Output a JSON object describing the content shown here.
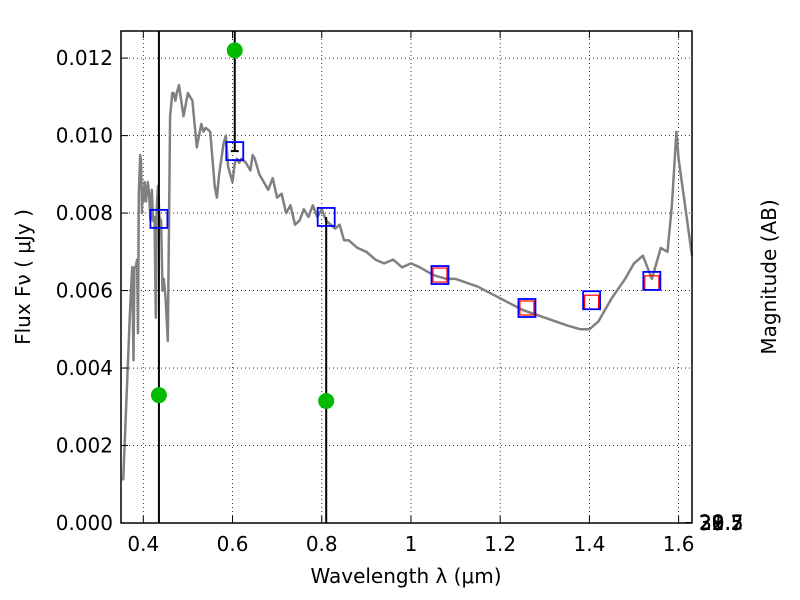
{
  "chart_data": {
    "type": "line",
    "xlabel": "Wavelength  λ (μm)",
    "ylabel": "Flux  Fν  ( μJy )",
    "y2label": "Magnitude (AB)",
    "xlim": [
      0.35,
      1.63
    ],
    "ylim": [
      0.0,
      0.0127
    ],
    "x_ticks": [
      0.4,
      0.6,
      0.8,
      1.0,
      1.2,
      1.4,
      1.6
    ],
    "x_tick_labels": [
      "0.4",
      "0.6",
      "0.8",
      "1",
      "1.2",
      "1.4",
      "1.6"
    ],
    "y_ticks": [
      0.0,
      0.002,
      0.004,
      0.006,
      0.008,
      0.01,
      0.012
    ],
    "y_tick_labels": [
      "0.000",
      "0.002",
      "0.004",
      "0.006",
      "0.008",
      "0.010",
      "0.012"
    ],
    "y2_ticks": [
      28.7,
      29,
      29.2,
      29.5,
      30,
      30.5,
      31,
      32
    ],
    "y2_tick_labels": [
      "28.7",
      "29",
      "29.2",
      "29.5",
      "30",
      "30.5",
      "31",
      "32"
    ],
    "grid": true,
    "colors": {
      "spectrum": "#808080",
      "model_box": "#0000ff",
      "obs_box": "#ff0000",
      "measured_point": "#00bb00",
      "errorbar": "#000000"
    },
    "spectrum": {
      "x": [
        0.355,
        0.37,
        0.375,
        0.378,
        0.38,
        0.383,
        0.386,
        0.388,
        0.39,
        0.393,
        0.395,
        0.397,
        0.398,
        0.4,
        0.403,
        0.406,
        0.41,
        0.413,
        0.416,
        0.419,
        0.422,
        0.425,
        0.428,
        0.43,
        0.433,
        0.436,
        0.44,
        0.443,
        0.446,
        0.45,
        0.455,
        0.46,
        0.465,
        0.468,
        0.472,
        0.475,
        0.48,
        0.49,
        0.5,
        0.51,
        0.52,
        0.53,
        0.535,
        0.54,
        0.55,
        0.56,
        0.565,
        0.57,
        0.575,
        0.58,
        0.585,
        0.59,
        0.595,
        0.6,
        0.605,
        0.61,
        0.615,
        0.62,
        0.63,
        0.64,
        0.645,
        0.65,
        0.66,
        0.67,
        0.68,
        0.69,
        0.7,
        0.71,
        0.72,
        0.73,
        0.74,
        0.75,
        0.76,
        0.77,
        0.78,
        0.79,
        0.8,
        0.81,
        0.82,
        0.83,
        0.84,
        0.85,
        0.86,
        0.87,
        0.88,
        0.9,
        0.92,
        0.94,
        0.96,
        0.98,
        1.0,
        1.02,
        1.05,
        1.08,
        1.1,
        1.15,
        1.2,
        1.25,
        1.3,
        1.35,
        1.38,
        1.4,
        1.42,
        1.45,
        1.48,
        1.5,
        1.52,
        1.54,
        1.56,
        1.575,
        1.585,
        1.595,
        1.6,
        1.63
      ],
      "y": [
        0.0011,
        0.0054,
        0.0066,
        0.0042,
        0.0066,
        0.0066,
        0.0068,
        0.0049,
        0.0085,
        0.0095,
        0.0093,
        0.008,
        0.0086,
        0.0083,
        0.0088,
        0.0083,
        0.0088,
        0.0085,
        0.0078,
        0.0086,
        0.0078,
        0.0079,
        0.0053,
        0.0081,
        0.0087,
        0.0079,
        0.0078,
        0.006,
        0.0063,
        0.0058,
        0.0047,
        0.0105,
        0.0111,
        0.0111,
        0.0109,
        0.0111,
        0.0113,
        0.0105,
        0.0111,
        0.0109,
        0.0097,
        0.0103,
        0.0101,
        0.0102,
        0.0101,
        0.0087,
        0.0084,
        0.009,
        0.0094,
        0.0098,
        0.01,
        0.0092,
        0.009,
        0.0088,
        0.0093,
        0.0094,
        0.0093,
        0.0094,
        0.0093,
        0.0091,
        0.0095,
        0.0094,
        0.009,
        0.0088,
        0.0086,
        0.0089,
        0.0084,
        0.0085,
        0.008,
        0.0082,
        0.0077,
        0.0078,
        0.0081,
        0.0079,
        0.0082,
        0.0079,
        0.0081,
        0.0078,
        0.0077,
        0.0076,
        0.0077,
        0.0073,
        0.0073,
        0.0072,
        0.0071,
        0.007,
        0.0068,
        0.0067,
        0.0068,
        0.0066,
        0.0067,
        0.0066,
        0.0064,
        0.0063,
        0.0063,
        0.0061,
        0.0058,
        0.0055,
        0.0053,
        0.0051,
        0.005,
        0.005,
        0.0052,
        0.0058,
        0.0063,
        0.0067,
        0.0069,
        0.0063,
        0.0071,
        0.007,
        0.0082,
        0.0101,
        0.0094,
        0.0069
      ]
    },
    "model_boxes": {
      "x": [
        0.435,
        0.605,
        0.81,
        1.065,
        1.26,
        1.405,
        1.54
      ],
      "y": [
        0.00785,
        0.0096,
        0.0079,
        0.0064,
        0.00555,
        0.00575,
        0.00625
      ]
    },
    "obs_boxes": {
      "x": [
        1.065,
        1.26,
        1.405,
        1.54
      ],
      "y": [
        0.0064,
        0.00555,
        0.0057,
        0.0062
      ]
    },
    "measured_points": {
      "x": [
        0.435,
        0.605,
        0.81
      ],
      "y": [
        0.0033,
        0.0122,
        0.00315
      ],
      "err_low": [
        0.0,
        0.0096,
        0.0
      ],
      "err_high": [
        0.0127,
        0.0127,
        0.0079
      ]
    }
  }
}
